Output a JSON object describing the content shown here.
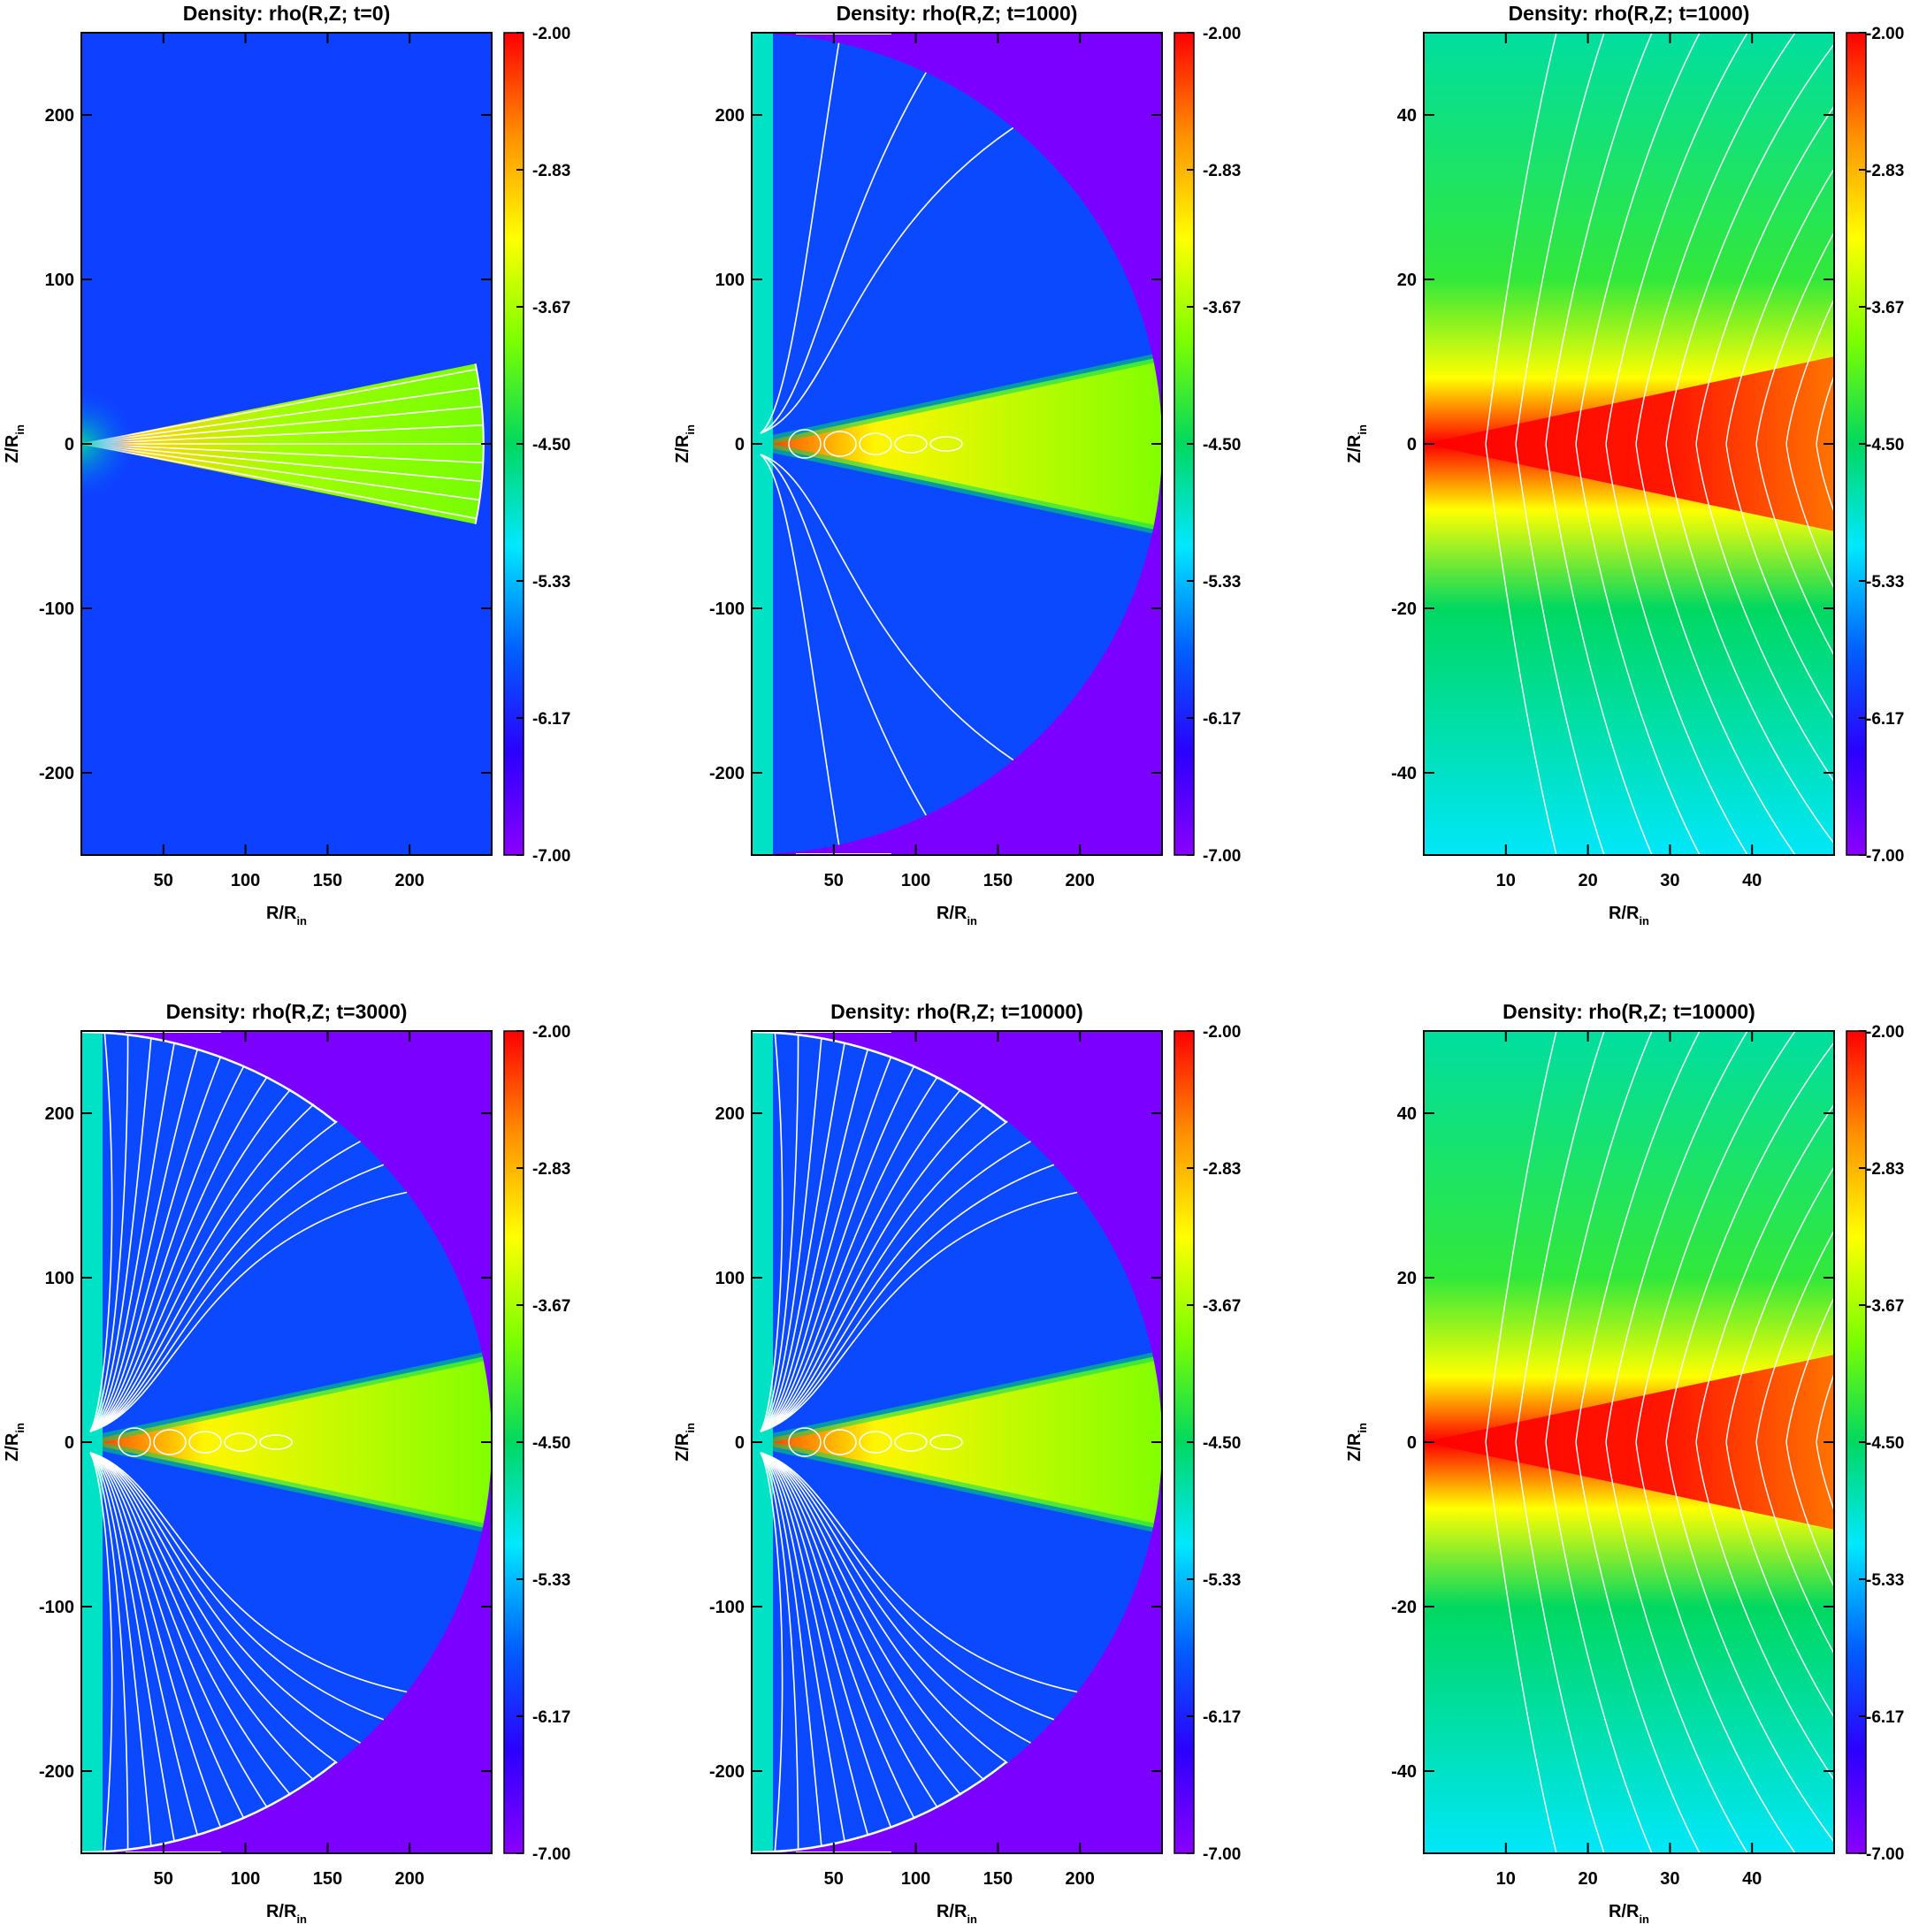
{
  "figure": {
    "colormap_stops": [
      "#8a00ff",
      "#2b00ff",
      "#0060ff",
      "#00e8ff",
      "#00d860",
      "#7cff00",
      "#ffff00",
      "#ff9000",
      "#ff0000"
    ],
    "colorbar_ticks": [
      "-2.00",
      "-2.83",
      "-3.67",
      "-4.50",
      "-5.33",
      "-6.17",
      "-7.00"
    ],
    "contour_color": "#ffffff"
  },
  "chart_data": [
    {
      "type": "heatmap",
      "title": "Density:   rho(R,Z; t=0)",
      "xlabel": "R/R",
      "xlabel_sub": "in",
      "ylabel": "Z/R",
      "ylabel_sub": "in",
      "xlim": [
        0,
        250
      ],
      "ylim": [
        -250,
        250
      ],
      "xticks": [
        "50",
        "100",
        "150",
        "200"
      ],
      "yticks": [
        "200",
        "100",
        "0",
        "-100",
        "-200"
      ],
      "clim": [
        -7.0,
        -2.0
      ],
      "time": 0,
      "view": "full",
      "disk_half_angle_deg": 11.5,
      "outer_radius": 250
    },
    {
      "type": "heatmap",
      "title": "Density:   rho(R,Z; t=1000)",
      "xlabel": "R/R",
      "xlabel_sub": "in",
      "ylabel": "Z/R",
      "ylabel_sub": "in",
      "xlim": [
        0,
        250
      ],
      "ylim": [
        -250,
        250
      ],
      "xticks": [
        "50",
        "100",
        "150",
        "200"
      ],
      "yticks": [
        "200",
        "100",
        "0",
        "-100",
        "-200"
      ],
      "clim": [
        -7.0,
        -2.0
      ],
      "time": 1000,
      "view": "full",
      "disk_half_angle_deg": 12,
      "outer_radius": 250
    },
    {
      "type": "heatmap",
      "title": "Density:   rho(R,Z; t=1000)",
      "xlabel": "R/R",
      "xlabel_sub": "in",
      "ylabel": "Z/R",
      "ylabel_sub": "in",
      "xlim": [
        0,
        50
      ],
      "ylim": [
        -50,
        50
      ],
      "xticks": [
        "10",
        "20",
        "30",
        "40"
      ],
      "yticks": [
        "40",
        "20",
        "0",
        "-20",
        "-40"
      ],
      "clim": [
        -7.0,
        -2.0
      ],
      "time": 1000,
      "view": "zoom",
      "disk_half_angle_deg": 12
    },
    {
      "type": "heatmap",
      "title": "Density:   rho(R,Z; t=3000)",
      "xlabel": "R/R",
      "xlabel_sub": "in",
      "ylabel": "Z/R",
      "ylabel_sub": "in",
      "xlim": [
        0,
        250
      ],
      "ylim": [
        -250,
        250
      ],
      "xticks": [
        "50",
        "100",
        "150",
        "200"
      ],
      "yticks": [
        "200",
        "100",
        "0",
        "-100",
        "-200"
      ],
      "clim": [
        -7.0,
        -2.0
      ],
      "time": 3000,
      "view": "full",
      "disk_half_angle_deg": 12,
      "outer_radius": 250
    },
    {
      "type": "heatmap",
      "title": "Density:   rho(R,Z; t=10000)",
      "xlabel": "R/R",
      "xlabel_sub": "in",
      "ylabel": "Z/R",
      "ylabel_sub": "in",
      "xlim": [
        0,
        250
      ],
      "ylim": [
        -250,
        250
      ],
      "xticks": [
        "50",
        "100",
        "150",
        "200"
      ],
      "yticks": [
        "200",
        "100",
        "0",
        "-100",
        "-200"
      ],
      "clim": [
        -7.0,
        -2.0
      ],
      "time": 10000,
      "view": "full",
      "disk_half_angle_deg": 12,
      "outer_radius": 250
    },
    {
      "type": "heatmap",
      "title": "Density:   rho(R,Z; t=10000)",
      "xlabel": "R/R",
      "xlabel_sub": "in",
      "ylabel": "Z/R",
      "ylabel_sub": "in",
      "xlim": [
        0,
        50
      ],
      "ylim": [
        -50,
        50
      ],
      "xticks": [
        "10",
        "20",
        "30",
        "40"
      ],
      "yticks": [
        "40",
        "20",
        "0",
        "-20",
        "-40"
      ],
      "clim": [
        -7.0,
        -2.0
      ],
      "time": 10000,
      "view": "zoom",
      "disk_half_angle_deg": 12
    }
  ]
}
